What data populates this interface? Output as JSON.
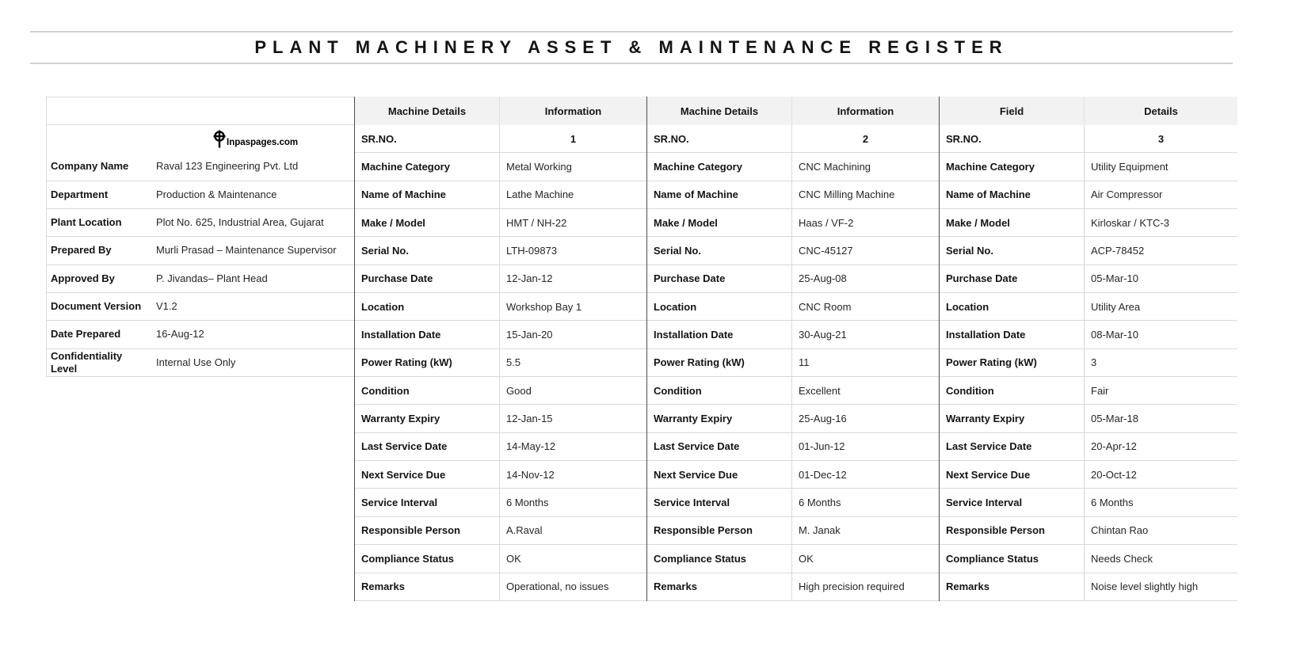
{
  "title": "PLANT MACHINERY ASSET & MAINTENANCE REGISTER",
  "logo": {
    "icon": "crosshair-logo",
    "site": "Inpaspages.com"
  },
  "info_panel": {
    "rows": [
      {
        "label": "Company Name",
        "value": "Raval 123 Engineering Pvt. Ltd"
      },
      {
        "label": "Department",
        "value": "Production & Maintenance"
      },
      {
        "label": "Plant Location",
        "value": "Plot No. 625, Industrial Area, Gujarat"
      },
      {
        "label": "Prepared By",
        "value": "Murli Prasad – Maintenance Supervisor"
      },
      {
        "label": "Approved By",
        "value": "P. Jivandas– Plant Head"
      },
      {
        "label": "Document Version",
        "value": "V1.2"
      },
      {
        "label": "Date Prepared",
        "value": "16-Aug-12"
      },
      {
        "label": "Confidentiality Level",
        "value": "Internal Use Only"
      }
    ]
  },
  "machines": [
    {
      "header_field": "Machine Details",
      "header_info": "Information",
      "rows": [
        {
          "label": "SR.NO.",
          "value": "1"
        },
        {
          "label": "Machine Category",
          "value": "Metal Working"
        },
        {
          "label": "Name of Machine",
          "value": "Lathe Machine"
        },
        {
          "label": "Make / Model",
          "value": "HMT / NH-22"
        },
        {
          "label": "Serial No.",
          "value": "LTH-09873"
        },
        {
          "label": "Purchase Date",
          "value": "12-Jan-12"
        },
        {
          "label": "Location",
          "value": "Workshop Bay 1"
        },
        {
          "label": "Installation Date",
          "value": "15-Jan-20"
        },
        {
          "label": "Power Rating (kW)",
          "value": "5.5"
        },
        {
          "label": "Condition",
          "value": "Good"
        },
        {
          "label": "Warranty Expiry",
          "value": "12-Jan-15"
        },
        {
          "label": "Last Service Date",
          "value": "14-May-12"
        },
        {
          "label": "Next Service Due",
          "value": "14-Nov-12"
        },
        {
          "label": "Service Interval",
          "value": "6 Months"
        },
        {
          "label": "Responsible Person",
          "value": "A.Raval"
        },
        {
          "label": "Compliance Status",
          "value": "OK"
        },
        {
          "label": "Remarks",
          "value": "Operational, no issues"
        }
      ]
    },
    {
      "header_field": "Machine Details",
      "header_info": "Information",
      "rows": [
        {
          "label": "SR.NO.",
          "value": "2"
        },
        {
          "label": "Machine Category",
          "value": "CNC Machining"
        },
        {
          "label": "Name of Machine",
          "value": "CNC Milling Machine"
        },
        {
          "label": "Make / Model",
          "value": "Haas / VF-2"
        },
        {
          "label": "Serial No.",
          "value": "CNC-45127"
        },
        {
          "label": "Purchase Date",
          "value": "25-Aug-08"
        },
        {
          "label": "Location",
          "value": "CNC Room"
        },
        {
          "label": "Installation Date",
          "value": "30-Aug-21"
        },
        {
          "label": "Power Rating (kW)",
          "value": "11"
        },
        {
          "label": "Condition",
          "value": "Excellent"
        },
        {
          "label": "Warranty Expiry",
          "value": "25-Aug-16"
        },
        {
          "label": "Last Service Date",
          "value": "01-Jun-12"
        },
        {
          "label": "Next Service Due",
          "value": "01-Dec-12"
        },
        {
          "label": "Service Interval",
          "value": "6 Months"
        },
        {
          "label": "Responsible Person",
          "value": "M. Janak"
        },
        {
          "label": "Compliance Status",
          "value": "OK"
        },
        {
          "label": "Remarks",
          "value": "High precision required"
        }
      ]
    },
    {
      "header_field": "Field",
      "header_info": "Details",
      "rows": [
        {
          "label": "SR.NO.",
          "value": "3"
        },
        {
          "label": "Machine Category",
          "value": "Utility Equipment"
        },
        {
          "label": "Name of Machine",
          "value": "Air Compressor"
        },
        {
          "label": "Make / Model",
          "value": "Kirloskar / KTC-3"
        },
        {
          "label": "Serial No.",
          "value": "ACP-78452"
        },
        {
          "label": "Purchase Date",
          "value": "05-Mar-10"
        },
        {
          "label": "Location",
          "value": "Utility Area"
        },
        {
          "label": "Installation Date",
          "value": "08-Mar-10"
        },
        {
          "label": "Power Rating (kW)",
          "value": "3"
        },
        {
          "label": "Condition",
          "value": "Fair"
        },
        {
          "label": "Warranty Expiry",
          "value": "05-Mar-18"
        },
        {
          "label": "Last Service Date",
          "value": "20-Apr-12"
        },
        {
          "label": "Next Service Due",
          "value": "20-Oct-12"
        },
        {
          "label": "Service Interval",
          "value": "6 Months"
        },
        {
          "label": "Responsible Person",
          "value": "Chintan Rao"
        },
        {
          "label": "Compliance Status",
          "value": "Needs Check"
        },
        {
          "label": "Remarks",
          "value": "Noise level slightly high"
        }
      ]
    }
  ]
}
